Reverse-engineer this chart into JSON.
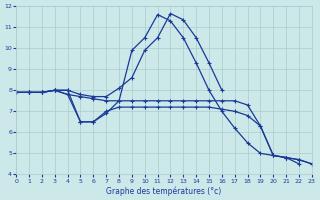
{
  "background_color": "#cce8e8",
  "grid_color": "#aacccc",
  "line_color": "#1a3a9a",
  "xlabel": "Graphe des températures (°c)",
  "xlim": [
    0,
    23
  ],
  "ylim": [
    4,
    12
  ],
  "xticks": [
    0,
    1,
    2,
    3,
    4,
    5,
    6,
    7,
    8,
    9,
    10,
    11,
    12,
    13,
    14,
    15,
    16,
    17,
    18,
    19,
    20,
    21,
    22,
    23
  ],
  "yticks": [
    4,
    5,
    6,
    7,
    8,
    9,
    10,
    11,
    12
  ],
  "series": [
    {
      "x": [
        0,
        1,
        2,
        3,
        4,
        5,
        6,
        7,
        8,
        9,
        10,
        11,
        12,
        13,
        14,
        15,
        16
      ],
      "y": [
        7.9,
        7.9,
        7.9,
        8.0,
        8.0,
        7.8,
        7.7,
        7.7,
        8.1,
        8.6,
        9.9,
        10.5,
        11.65,
        11.35,
        10.5,
        9.3,
        8.0
      ]
    },
    {
      "x": [
        0,
        1,
        2,
        3,
        4,
        5,
        6,
        7,
        8,
        9,
        10,
        11,
        12,
        13,
        14,
        15,
        16,
        17,
        18,
        19,
        20,
        21,
        22
      ],
      "y": [
        7.9,
        7.9,
        7.9,
        8.0,
        8.0,
        6.5,
        6.5,
        6.9,
        7.5,
        9.9,
        10.5,
        11.6,
        11.3,
        10.5,
        9.3,
        8.0,
        7.0,
        6.2,
        5.5,
        5.0,
        4.9,
        4.8,
        4.5
      ]
    },
    {
      "x": [
        0,
        1,
        2,
        3,
        4,
        5,
        6,
        7,
        8,
        9,
        10,
        11,
        12,
        13,
        14,
        15,
        16,
        17,
        18,
        19,
        20,
        21,
        22,
        23
      ],
      "y": [
        7.9,
        7.9,
        7.9,
        8.0,
        7.8,
        7.7,
        7.6,
        7.5,
        7.5,
        7.5,
        7.5,
        7.5,
        7.5,
        7.5,
        7.5,
        7.5,
        7.5,
        7.5,
        7.3,
        6.3,
        4.9,
        4.8,
        4.7,
        4.5
      ]
    },
    {
      "x": [
        0,
        1,
        2,
        3,
        4,
        5,
        6,
        7,
        8,
        9,
        10,
        11,
        12,
        13,
        14,
        15,
        16,
        17,
        18,
        19,
        20,
        21,
        22,
        23
      ],
      "y": [
        7.9,
        7.9,
        7.9,
        8.0,
        7.8,
        6.5,
        6.5,
        7.0,
        7.2,
        7.2,
        7.2,
        7.2,
        7.2,
        7.2,
        7.2,
        7.2,
        7.1,
        7.0,
        6.8,
        6.3,
        4.9,
        4.8,
        4.7,
        4.5
      ]
    }
  ]
}
